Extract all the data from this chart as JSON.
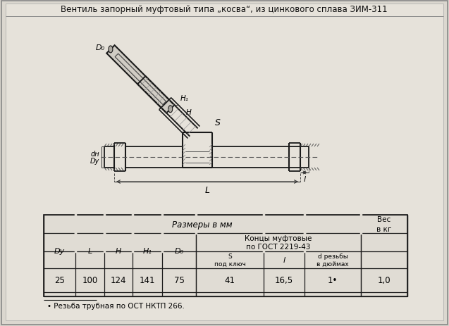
{
  "title": "Вентиль запорный муфтовый типа „косва“, из цинкового сплава ЗИМ-311",
  "bg_color": "#d8d4cc",
  "inner_bg": "#e8e4dc",
  "dark": "#1a1a1a",
  "gray": "#555555",
  "table_data_vals": [
    "25",
    "100",
    "124",
    "141",
    "75",
    "41",
    "16,5",
    "1•",
    "1,0"
  ],
  "footnote": "• Резьба трубная по ОСТ НКТП 266."
}
